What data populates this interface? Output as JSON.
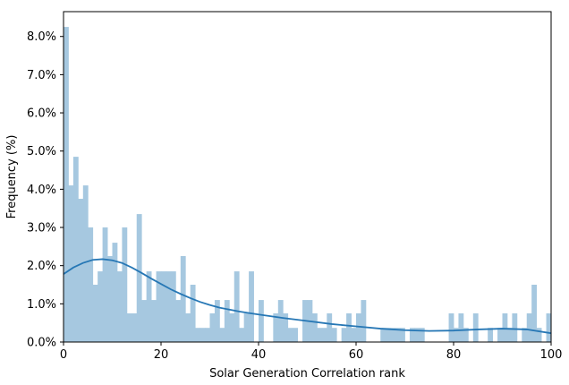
{
  "chart_data": {
    "type": "bar",
    "subtype": "histogram_with_kde",
    "title": "",
    "xlabel": "Solar Generation Correlation rank",
    "ylabel": "Frequency (%)",
    "xlim": [
      0,
      100
    ],
    "ylim": [
      0,
      8.65
    ],
    "bin_width": 1,
    "x_ticks": [
      0,
      20,
      40,
      60,
      80,
      100
    ],
    "x_tick_labels": [
      "0",
      "20",
      "40",
      "60",
      "80",
      "100"
    ],
    "y_ticks": [
      0,
      1,
      2,
      3,
      4,
      5,
      6,
      7,
      8
    ],
    "y_tick_labels": [
      "0.0%",
      "1.0%",
      "2.0%",
      "3.0%",
      "4.0%",
      "5.0%",
      "6.0%",
      "7.0%",
      "8.0%"
    ],
    "bar_color": "#a6c8e0",
    "line_color": "#2677b5",
    "grid": false,
    "bins": [
      {
        "x": 0,
        "v": 8.25
      },
      {
        "x": 1,
        "v": 4.1
      },
      {
        "x": 2,
        "v": 4.85
      },
      {
        "x": 3,
        "v": 3.75
      },
      {
        "x": 4,
        "v": 4.1
      },
      {
        "x": 5,
        "v": 3.0
      },
      {
        "x": 6,
        "v": 1.5
      },
      {
        "x": 7,
        "v": 1.85
      },
      {
        "x": 8,
        "v": 3.0
      },
      {
        "x": 9,
        "v": 2.25
      },
      {
        "x": 10,
        "v": 2.6
      },
      {
        "x": 11,
        "v": 1.85
      },
      {
        "x": 12,
        "v": 3.0
      },
      {
        "x": 13,
        "v": 0.75
      },
      {
        "x": 14,
        "v": 0.75
      },
      {
        "x": 15,
        "v": 3.35
      },
      {
        "x": 16,
        "v": 1.1
      },
      {
        "x": 17,
        "v": 1.85
      },
      {
        "x": 18,
        "v": 1.1
      },
      {
        "x": 19,
        "v": 1.85
      },
      {
        "x": 20,
        "v": 1.85
      },
      {
        "x": 21,
        "v": 1.85
      },
      {
        "x": 22,
        "v": 1.85
      },
      {
        "x": 23,
        "v": 1.1
      },
      {
        "x": 24,
        "v": 2.25
      },
      {
        "x": 25,
        "v": 0.75
      },
      {
        "x": 26,
        "v": 1.5
      },
      {
        "x": 27,
        "v": 0.37
      },
      {
        "x": 28,
        "v": 0.37
      },
      {
        "x": 29,
        "v": 0.37
      },
      {
        "x": 30,
        "v": 0.75
      },
      {
        "x": 31,
        "v": 1.1
      },
      {
        "x": 32,
        "v": 0.37
      },
      {
        "x": 33,
        "v": 1.1
      },
      {
        "x": 34,
        "v": 0.75
      },
      {
        "x": 35,
        "v": 1.85
      },
      {
        "x": 36,
        "v": 0.37
      },
      {
        "x": 37,
        "v": 0.75
      },
      {
        "x": 38,
        "v": 1.85
      },
      {
        "x": 40,
        "v": 1.1
      },
      {
        "x": 43,
        "v": 0.75
      },
      {
        "x": 44,
        "v": 1.1
      },
      {
        "x": 45,
        "v": 0.75
      },
      {
        "x": 46,
        "v": 0.37
      },
      {
        "x": 47,
        "v": 0.37
      },
      {
        "x": 49,
        "v": 1.1
      },
      {
        "x": 50,
        "v": 1.1
      },
      {
        "x": 51,
        "v": 0.75
      },
      {
        "x": 52,
        "v": 0.37
      },
      {
        "x": 53,
        "v": 0.37
      },
      {
        "x": 54,
        "v": 0.75
      },
      {
        "x": 55,
        "v": 0.37
      },
      {
        "x": 57,
        "v": 0.37
      },
      {
        "x": 58,
        "v": 0.75
      },
      {
        "x": 59,
        "v": 0.37
      },
      {
        "x": 60,
        "v": 0.75
      },
      {
        "x": 61,
        "v": 1.1
      },
      {
        "x": 65,
        "v": 0.37
      },
      {
        "x": 66,
        "v": 0.37
      },
      {
        "x": 67,
        "v": 0.37
      },
      {
        "x": 68,
        "v": 0.37
      },
      {
        "x": 69,
        "v": 0.37
      },
      {
        "x": 71,
        "v": 0.37
      },
      {
        "x": 72,
        "v": 0.37
      },
      {
        "x": 73,
        "v": 0.37
      },
      {
        "x": 79,
        "v": 0.75
      },
      {
        "x": 80,
        "v": 0.37
      },
      {
        "x": 81,
        "v": 0.75
      },
      {
        "x": 82,
        "v": 0.37
      },
      {
        "x": 84,
        "v": 0.75
      },
      {
        "x": 87,
        "v": 0.37
      },
      {
        "x": 89,
        "v": 0.37
      },
      {
        "x": 90,
        "v": 0.75
      },
      {
        "x": 91,
        "v": 0.37
      },
      {
        "x": 92,
        "v": 0.75
      },
      {
        "x": 94,
        "v": 0.37
      },
      {
        "x": 95,
        "v": 0.75
      },
      {
        "x": 96,
        "v": 1.5
      },
      {
        "x": 97,
        "v": 0.37
      },
      {
        "x": 99,
        "v": 0.75
      }
    ],
    "kde": {
      "x": [
        0,
        2,
        4,
        6,
        8,
        10,
        12,
        14,
        16,
        18,
        20,
        22,
        24,
        26,
        28,
        30,
        32,
        34,
        36,
        38,
        40,
        45,
        50,
        55,
        60,
        65,
        70,
        75,
        80,
        85,
        90,
        95,
        100
      ],
      "y": [
        1.78,
        1.95,
        2.07,
        2.15,
        2.17,
        2.14,
        2.07,
        1.95,
        1.81,
        1.66,
        1.52,
        1.38,
        1.26,
        1.15,
        1.05,
        0.97,
        0.9,
        0.85,
        0.8,
        0.76,
        0.72,
        0.63,
        0.55,
        0.47,
        0.41,
        0.35,
        0.31,
        0.29,
        0.3,
        0.33,
        0.35,
        0.33,
        0.23
      ]
    }
  }
}
